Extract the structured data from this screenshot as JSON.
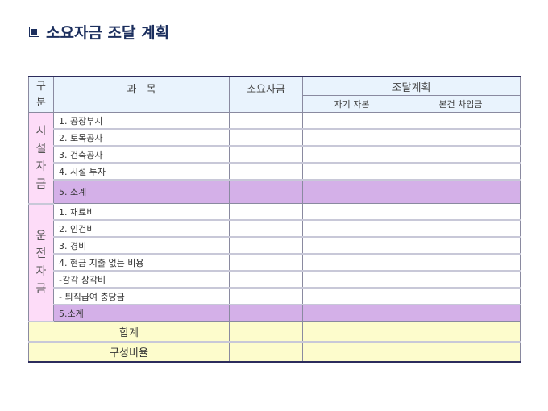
{
  "title": "소요자금 조달 계획",
  "header": {
    "gubun": "구\n분",
    "subject": "과   목",
    "required": "소요자금",
    "funding": "조달계획",
    "own": "자기 자본",
    "loan": "본건 차입금"
  },
  "facility": {
    "label": "시\n설\n자\n금",
    "items": [
      "1. 공장부지",
      "2. 토목공사",
      "3. 건축공사",
      "4. 시설 투자"
    ],
    "subtotal": "5. 소계"
  },
  "operating": {
    "label": "운\n전\n자\n금",
    "items": [
      "1. 재료비",
      "2. 인건비",
      "3. 경비",
      "4. 현금 지출 없는 비용",
      "-감각 상각비",
      "- 퇴직급여 충당금"
    ],
    "subtotal": "5.소계"
  },
  "total": "합계",
  "ratio": "구성비율",
  "colors": {
    "header": "#e9f3fd",
    "category": "#fddcf8",
    "subtotal": "#d4b0e8",
    "total": "#fdfccc",
    "title": "#1c2f5e"
  }
}
